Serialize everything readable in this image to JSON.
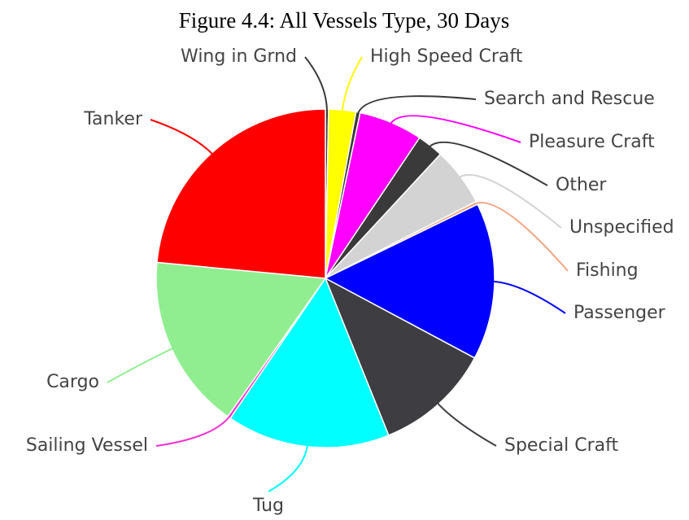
{
  "chart_data": {
    "type": "pie",
    "title": "Figure 4.4: All Vessels Type, 30 Days",
    "categories": [
      "Wing in Grnd",
      "High Speed Craft",
      "Search and Rescue",
      "Pleasure Craft",
      "Other",
      "Unspecified",
      "Fishing",
      "Passenger",
      "Special Craft",
      "Tug",
      "Sailing Vessel",
      "Cargo",
      "Tanker"
    ],
    "values": [
      0.3,
      2.6,
      0.4,
      6.1,
      2.5,
      5.6,
      0.3,
      15,
      11.1,
      15.6,
      0.3,
      16.7,
      23.5
    ],
    "colors": [
      "#3a3a3a",
      "#ffff00",
      "#3a3a3a",
      "#ff00ff",
      "#3a3a3a",
      "#d3d3d3",
      "#f4a582",
      "#0000ff",
      "#3e3d42",
      "#00ffff",
      "#f030d0",
      "#90ee90",
      "#ff0000"
    ]
  }
}
